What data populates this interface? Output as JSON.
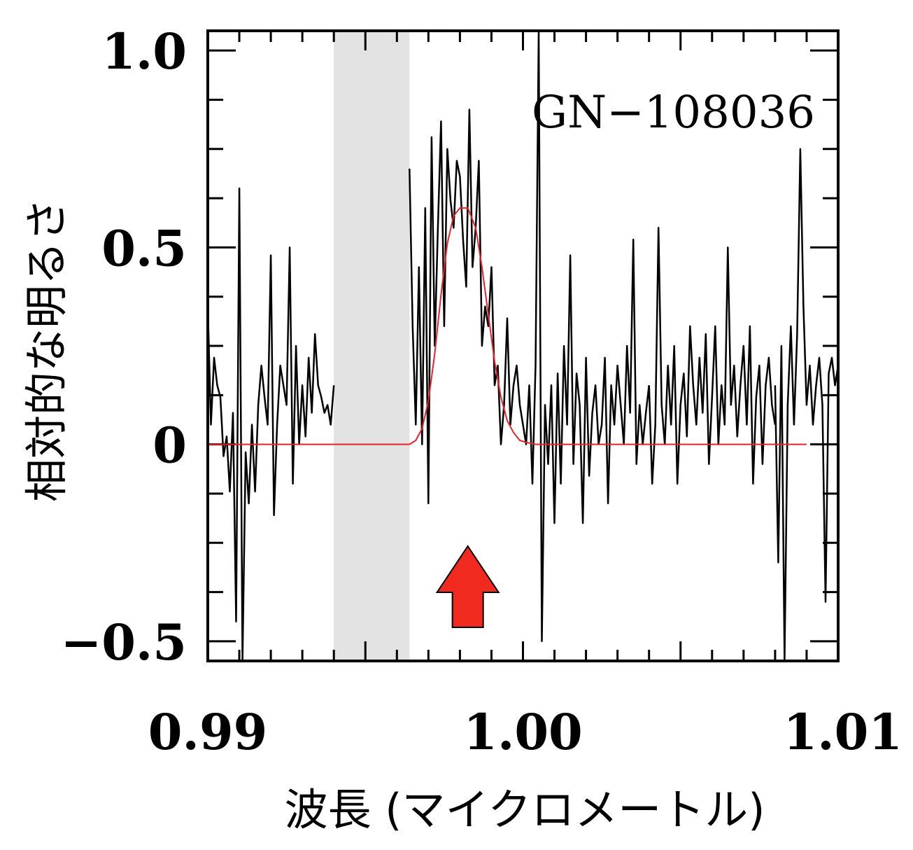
{
  "chart_data": {
    "type": "line",
    "xlabel": "波長 (マイクロメートル)",
    "ylabel": "相対的な明るさ",
    "annotation": "GN−108036",
    "xlim": [
      0.99,
      1.01
    ],
    "ylim": [
      -0.55,
      1.05
    ],
    "x_ticks": [
      {
        "value": 0.99,
        "label": "0.99"
      },
      {
        "value": 1.0,
        "label": "1.00"
      },
      {
        "value": 1.01,
        "label": "1.01"
      }
    ],
    "y_ticks": [
      {
        "value": 1.0,
        "label": "1.0"
      },
      {
        "value": 0.5,
        "label": "0.5"
      },
      {
        "value": 0.0,
        "label": "0"
      },
      {
        "value": -0.5,
        "label": "−0.5"
      }
    ],
    "masked_region": [
      0.994,
      0.9964
    ],
    "emission_line_center": 0.99825,
    "series": [
      {
        "style": "spectrum",
        "color": "#000000",
        "segments": [
          {
            "x": [
              0.99,
              0.9901,
              0.9902,
              0.9903,
              0.9904,
              0.9905,
              0.9906,
              0.9907,
              0.9908,
              0.9909,
              0.991,
              0.9911,
              0.9912,
              0.9913,
              0.9914,
              0.9915,
              0.9916,
              0.9917,
              0.9918,
              0.9919,
              0.992,
              0.9921,
              0.9922,
              0.9923,
              0.9924,
              0.9925,
              0.9926,
              0.9927,
              0.9928,
              0.9929,
              0.993,
              0.9931,
              0.9932,
              0.9933,
              0.9934,
              0.9935,
              0.9936,
              0.9937,
              0.9938,
              0.9939,
              0.994
            ],
            "y": [
              0.35,
              0.05,
              0.22,
              0.15,
              0.12,
              -0.03,
              0.02,
              -0.12,
              0.08,
              -0.45,
              0.65,
              -0.55,
              -0.02,
              -0.15,
              0.05,
              -0.12,
              0.1,
              0.2,
              0.12,
              0.05,
              0.48,
              -0.18,
              0.05,
              0.2,
              0.15,
              0.1,
              0.5,
              -0.1,
              0.25,
              0.0,
              0.15,
              0.02,
              0.22,
              0.08,
              0.28,
              0.15,
              0.12,
              0.08,
              0.1,
              0.05,
              0.15
            ]
          },
          {
            "x": [
              0.9964,
              0.9965,
              0.9966,
              0.9967,
              0.9968,
              0.9969,
              0.997,
              0.9971,
              0.9972,
              0.9973,
              0.9974,
              0.9975,
              0.9976,
              0.9977,
              0.9978,
              0.9979,
              0.998,
              0.9981,
              0.9982,
              0.9983,
              0.9984,
              0.9985,
              0.9986,
              0.9987,
              0.9988,
              0.9989,
              0.999,
              0.9991,
              0.9992,
              0.9993,
              0.9994,
              0.9995,
              0.9996,
              0.9997,
              0.9998,
              0.9999,
              1.0
            ],
            "y": [
              0.7,
              0.3,
              0.05,
              0.45,
              0.0,
              0.6,
              -0.15,
              0.78,
              0.25,
              0.55,
              0.82,
              0.3,
              0.75,
              0.62,
              0.55,
              0.72,
              0.68,
              0.52,
              0.4,
              0.85,
              0.45,
              0.55,
              0.72,
              0.25,
              0.35,
              0.3,
              0.45,
              0.15,
              0.2,
              0.0,
              0.1,
              0.32,
              0.05,
              0.15,
              0.2,
              0.1,
              0.05
            ]
          },
          {
            "x": [
              1.0,
              1.0001,
              1.0002,
              1.0003,
              1.0004,
              1.0005,
              1.0006,
              1.0007,
              1.0008,
              1.0009,
              1.001,
              1.0011,
              1.0012,
              1.0013,
              1.0014,
              1.0015,
              1.0016,
              1.0017,
              1.0018,
              1.0019,
              1.002,
              1.0021,
              1.0022,
              1.0023,
              1.0024,
              1.0025,
              1.0026,
              1.0027,
              1.0028,
              1.0029,
              1.003,
              1.0031,
              1.0032,
              1.0033,
              1.0034,
              1.0035,
              1.0036,
              1.0037,
              1.0038,
              1.0039,
              1.004
            ],
            "y": [
              0.05,
              0.0,
              0.15,
              -0.1,
              0.2,
              1.05,
              -0.5,
              0.1,
              -0.05,
              0.15,
              -0.2,
              0.18,
              -0.1,
              0.25,
              0.05,
              0.48,
              -0.05,
              0.18,
              0.1,
              -0.2,
              0.22,
              -0.08,
              0.08,
              0.15,
              0.0,
              0.05,
              0.22,
              -0.15,
              0.15,
              0.05,
              0.2,
              0.1,
              0.0,
              0.25,
              0.08,
              0.52,
              -0.05,
              0.1,
              0.0,
              0.08,
              0.15
            ]
          },
          {
            "x": [
              1.004,
              1.0041,
              1.0042,
              1.0043,
              1.0044,
              1.0045,
              1.0046,
              1.0047,
              1.0048,
              1.0049,
              1.005,
              1.0051,
              1.0052,
              1.0053,
              1.0054,
              1.0055,
              1.0056,
              1.0057,
              1.0058,
              1.0059,
              1.006,
              1.0061,
              1.0062,
              1.0063,
              1.0064,
              1.0065,
              1.0066,
              1.0067,
              1.0068,
              1.0069,
              1.007,
              1.0071,
              1.0072,
              1.0073,
              1.0074,
              1.0075,
              1.0076,
              1.0077,
              1.0078,
              1.0079,
              1.008
            ],
            "y": [
              0.15,
              -0.1,
              0.05,
              0.55,
              0.1,
              0.0,
              0.2,
              0.05,
              0.25,
              -0.1,
              0.1,
              0.18,
              0.02,
              0.3,
              0.15,
              0.05,
              0.22,
              0.08,
              0.28,
              -0.05,
              0.12,
              0.3,
              0.0,
              0.15,
              0.05,
              0.5,
              0.1,
              0.2,
              0.02,
              0.15,
              0.25,
              0.05,
              0.3,
              -0.1,
              0.12,
              0.2,
              -0.05,
              0.15,
              0.22,
              0.1,
              0.05
            ]
          },
          {
            "x": [
              1.008,
              1.0081,
              1.0082,
              1.0083,
              1.0084,
              1.0085,
              1.0086,
              1.0087,
              1.0088,
              1.0089,
              1.009,
              1.0091,
              1.0092,
              1.0093,
              1.0094,
              1.0095,
              1.0096,
              1.0097,
              1.0098,
              1.0099,
              1.01
            ],
            "y": [
              0.15,
              -0.3,
              0.25,
              -0.55,
              0.1,
              0.3,
              0.05,
              0.28,
              0.75,
              0.35,
              0.1,
              0.2,
              0.05,
              0.15,
              0.22,
              0.1,
              -0.4,
              0.18,
              0.22,
              0.15,
              0.2
            ]
          }
        ]
      },
      {
        "style": "gaussian-fit",
        "color": "#e8232a",
        "segments": [
          {
            "x": [
              0.99,
              0.9964,
              0.9966,
              0.9968,
              0.997,
              0.9972,
              0.9974,
              0.9976,
              0.9978,
              0.998,
              0.99825,
              0.9985,
              0.9987,
              0.9989,
              0.9991,
              0.9993,
              0.9995,
              0.9997,
              0.9999,
              1.0001,
              1.0004,
              1.009
            ],
            "y": [
              0.0,
              0.0,
              0.01,
              0.04,
              0.11,
              0.23,
              0.38,
              0.51,
              0.58,
              0.6,
              0.6,
              0.55,
              0.45,
              0.33,
              0.21,
              0.12,
              0.06,
              0.03,
              0.01,
              0.005,
              0.0,
              0.0
            ]
          }
        ]
      }
    ]
  }
}
